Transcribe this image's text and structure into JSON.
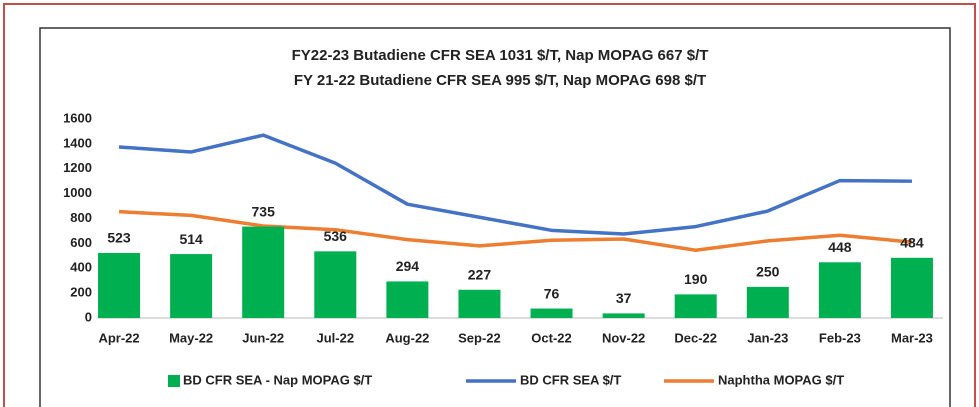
{
  "chart_data": {
    "type": "bar-line",
    "title": "FY22-23 Butadiene CFR SEA 1031 $/T, Nap MOPAG 667 $/T",
    "subtitle": "FY 21-22 Butadiene CFR SEA 995 $/T, Nap MOPAG 698 $/T",
    "categories": [
      "Apr-22",
      "May-22",
      "Jun-22",
      "Jul-22",
      "Aug-22",
      "Sep-22",
      "Oct-22",
      "Nov-22",
      "Dec-22",
      "Jan-23",
      "Feb-23",
      "Mar-23"
    ],
    "series": [
      {
        "name": "BD CFR SEA - Nap MOPAG $/T",
        "type": "bar",
        "color": "#00b050",
        "values": [
          523,
          514,
          735,
          536,
          294,
          227,
          76,
          37,
          190,
          250,
          448,
          484
        ]
      },
      {
        "name": "BD CFR SEA $/T",
        "type": "line",
        "color": "#4472c4",
        "values": [
          1375,
          1335,
          1470,
          1245,
          915,
          810,
          705,
          675,
          735,
          860,
          1105,
          1100
        ]
      },
      {
        "name": "Naphtha MOPAG $/T",
        "type": "line",
        "color": "#ed7d31",
        "values": [
          855,
          825,
          740,
          710,
          630,
          580,
          625,
          635,
          545,
          620,
          665,
          610
        ]
      }
    ],
    "ylim": [
      0,
      1600
    ],
    "yticks": [
      0,
      200,
      400,
      600,
      800,
      1000,
      1200,
      1400,
      1600
    ],
    "legend": "bottom"
  }
}
